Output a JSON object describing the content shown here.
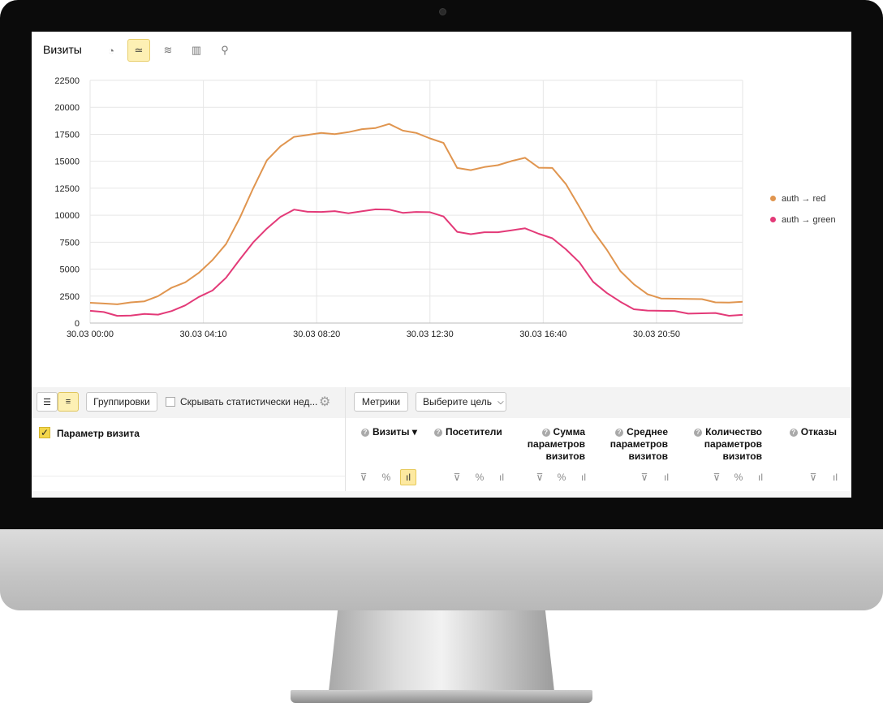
{
  "report": {
    "title": "Визиты",
    "chart_types": [
      {
        "icon": "pie-chart-icon",
        "glyph": "◔",
        "active": false
      },
      {
        "icon": "line-chart-icon",
        "glyph": "≃",
        "active": true
      },
      {
        "icon": "stacked-area-icon",
        "glyph": "≋",
        "active": false
      },
      {
        "icon": "column-chart-icon",
        "glyph": "▥",
        "active": false
      },
      {
        "icon": "map-pin-icon",
        "glyph": "⚲",
        "active": false
      }
    ]
  },
  "chart_data": {
    "type": "line",
    "x_ticks": [
      "30.03 00:00",
      "30.03 04:10",
      "30.03 08:20",
      "30.03 12:30",
      "30.03 16:40",
      "30.03 20:50"
    ],
    "ylim": [
      0,
      22500
    ],
    "y_ticks": [
      "0",
      "2500",
      "5000",
      "7500",
      "10000",
      "12500",
      "15000",
      "17500",
      "20000",
      "22500"
    ],
    "grid": true,
    "legend_position": "right",
    "x_hours": [
      0,
      0.5,
      1,
      1.5,
      2,
      2.5,
      3,
      3.5,
      4,
      4.5,
      5,
      5.5,
      6,
      6.5,
      7,
      7.5,
      8,
      8.5,
      9,
      9.5,
      10,
      10.5,
      11,
      11.5,
      12,
      12.5,
      13,
      13.5,
      14,
      14.5,
      15,
      15.5,
      16,
      16.5,
      17,
      17.5,
      18,
      18.5,
      19,
      19.5,
      20,
      20.5,
      21,
      21.5,
      22,
      22.5,
      23,
      23.5,
      24
    ],
    "series": [
      {
        "name": "auth → red",
        "color": "#e0954f",
        "values": [
          2000,
          1850,
          1700,
          1800,
          2100,
          2500,
          3200,
          3900,
          4700,
          5800,
          7200,
          9800,
          12500,
          15000,
          16500,
          17300,
          17400,
          17500,
          17600,
          17700,
          17900,
          18200,
          18500,
          17800,
          17500,
          17200,
          16700,
          14300,
          14300,
          14500,
          14600,
          14900,
          15400,
          14400,
          14300,
          13000,
          10800,
          8500,
          6700,
          4900,
          3600,
          2600,
          2400,
          2300,
          2200,
          2100,
          2000,
          1900,
          1900
        ]
      },
      {
        "name": "auth → green",
        "color": "#e33a78",
        "values": [
          1100,
          900,
          750,
          700,
          760,
          900,
          1150,
          1600,
          2300,
          3100,
          4200,
          5800,
          7600,
          8800,
          9800,
          10400,
          10400,
          10300,
          10300,
          10300,
          10400,
          10500,
          10400,
          10300,
          10300,
          10200,
          10000,
          8500,
          8200,
          8300,
          8500,
          8600,
          8700,
          8400,
          7900,
          6800,
          5500,
          3900,
          2800,
          1900,
          1400,
          1200,
          1100,
          1000,
          950,
          900,
          850,
          800,
          800
        ]
      }
    ]
  },
  "table_toolbar": {
    "group_label": "Группировки",
    "hide_label": "Скрывать статистически нед...",
    "metrics_label": "Метрики",
    "goal_label": "Выберите цель"
  },
  "table": {
    "param_label": "Параметр визита",
    "columns": [
      {
        "lines": [
          "Визиты ▾"
        ]
      },
      {
        "lines": [
          "Посетители"
        ]
      },
      {
        "lines": [
          "Сумма",
          "параметров",
          "визитов"
        ]
      },
      {
        "lines": [
          "Среднее",
          "параметров",
          "визитов"
        ]
      },
      {
        "lines": [
          "Количество",
          "параметров",
          "визитов"
        ]
      },
      {
        "lines": [
          "Отказы"
        ]
      }
    ]
  }
}
